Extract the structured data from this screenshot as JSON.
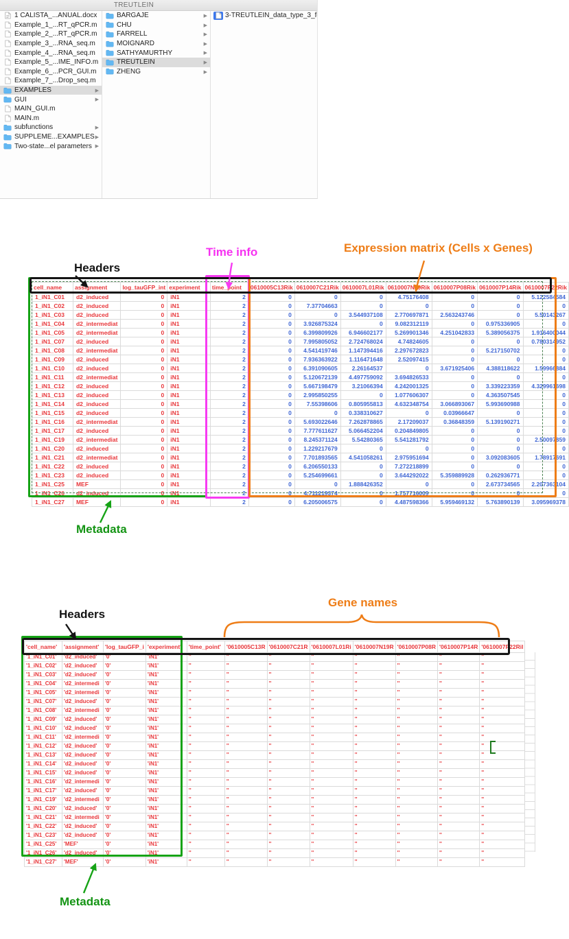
{
  "finder": {
    "title": "TREUTLEIN",
    "column1": [
      {
        "label": "1 CALISTA_...ANUAL.docx",
        "type": "docx"
      },
      {
        "label": "Example_1_...RT_qPCR.m",
        "type": "file"
      },
      {
        "label": "Example_2_...RT_qPCR.m",
        "type": "file"
      },
      {
        "label": "Example_3_...RNA_seq.m",
        "type": "file"
      },
      {
        "label": "Example_4_...RNA_seq.m",
        "type": "file"
      },
      {
        "label": "Example_5_...IME_INFO.m",
        "type": "file"
      },
      {
        "label": "Example_6_...PCR_GUI.m",
        "type": "file"
      },
      {
        "label": "Example_7_...Drop_seq.m",
        "type": "file"
      },
      {
        "label": "EXAMPLES",
        "type": "folder",
        "arrow": true,
        "selected": true
      },
      {
        "label": "GUI",
        "type": "folder",
        "arrow": true
      },
      {
        "label": "MAIN_GUI.m",
        "type": "file"
      },
      {
        "label": "MAIN.m",
        "type": "file"
      },
      {
        "label": "subfunctions",
        "type": "folder",
        "arrow": true
      },
      {
        "label": "SUPPLEME...EXAMPLES",
        "type": "folder",
        "arrow": true
      },
      {
        "label": "Two-state...el parameters",
        "type": "folder",
        "arrow": true
      }
    ],
    "column2": [
      {
        "label": "BARGAJE",
        "type": "folder",
        "arrow": true
      },
      {
        "label": "CHU",
        "type": "folder",
        "arrow": true
      },
      {
        "label": "FARRELL",
        "type": "folder",
        "arrow": true
      },
      {
        "label": "MOIGNARD",
        "type": "folder",
        "arrow": true
      },
      {
        "label": "SATHYAMURTHY",
        "type": "folder",
        "arrow": true
      },
      {
        "label": "TREUTLEIN",
        "type": "folder",
        "arrow": true,
        "selected": true
      },
      {
        "label": "ZHENG",
        "type": "folder",
        "arrow": true
      }
    ],
    "column3": [
      {
        "label": "3-TREUTLEIN_data_type_3_fo",
        "type": "file",
        "selected": true
      }
    ]
  },
  "figure1": {
    "annotations": {
      "headers": "Headers",
      "time": "Time info",
      "expression": "Expression matrix (Cells x Genes)",
      "metadata": "Metadata"
    },
    "table": {
      "headers": [
        "cell_name",
        "assignment",
        "log_tauGFP_int",
        "experiment",
        "time_point",
        "0610005C13Rik",
        "0610007C21Rik",
        "0610007L01Rik",
        "0610007N19Rik",
        "0610007P08Rik",
        "0610007P14Rik",
        "0610007P22Rik"
      ],
      "rows": [
        [
          "1_iN1_C01",
          "d2_induced",
          "0",
          "iN1",
          "2",
          "0",
          "0",
          "0",
          "4.75176408",
          "0",
          "0",
          "5.122584584"
        ],
        [
          "1_iN1_C02",
          "d2_induced",
          "0",
          "iN1",
          "2",
          "0",
          "7.37704663",
          "0",
          "0",
          "0",
          "0",
          "0"
        ],
        [
          "1_iN1_C03",
          "d2_induced",
          "0",
          "iN1",
          "2",
          "0",
          "0",
          "3.544937108",
          "2.770697871",
          "2.563243746",
          "0",
          "5.50143267"
        ],
        [
          "1_iN1_C04",
          "d2_intermediat",
          "0",
          "iN1",
          "2",
          "0",
          "3.926875324",
          "0",
          "9.082312119",
          "0",
          "0.975336905",
          "0"
        ],
        [
          "1_iN1_C05",
          "d2_intermediat",
          "0",
          "iN1",
          "2",
          "0",
          "6.399809926",
          "6.946602177",
          "5.269901346",
          "4.251042833",
          "5.389056375",
          "1.916400044"
        ],
        [
          "1_iN1_C07",
          "d2_induced",
          "0",
          "iN1",
          "2",
          "0",
          "7.995805052",
          "2.724768024",
          "4.74824605",
          "0",
          "0",
          "0.780314952"
        ],
        [
          "1_iN1_C08",
          "d2_intermediat",
          "0",
          "iN1",
          "2",
          "0",
          "4.541419746",
          "1.147394416",
          "2.297672823",
          "0",
          "5.217150702",
          "0"
        ],
        [
          "1_iN1_C09",
          "d2_induced",
          "0",
          "iN1",
          "2",
          "0",
          "7.936363922",
          "1.116471648",
          "2.52097415",
          "0",
          "0",
          "0"
        ],
        [
          "1_iN1_C10",
          "d2_induced",
          "0",
          "iN1",
          "2",
          "0",
          "6.391090605",
          "2.26164537",
          "0",
          "3.671925406",
          "4.388118622",
          "1.59966884"
        ],
        [
          "1_iN1_C11",
          "d2_intermediat",
          "0",
          "iN1",
          "2",
          "0",
          "5.120672139",
          "4.497759092",
          "3.694826533",
          "0",
          "0",
          "0"
        ],
        [
          "1_iN1_C12",
          "d2_induced",
          "0",
          "iN1",
          "2",
          "0",
          "5.667198479",
          "3.21066394",
          "4.242001325",
          "0",
          "3.339223359",
          "4.329961698"
        ],
        [
          "1_iN1_C13",
          "d2_induced",
          "0",
          "iN1",
          "2",
          "0",
          "2.995850255",
          "0",
          "1.077606307",
          "0",
          "4.363507545",
          "0"
        ],
        [
          "1_iN1_C14",
          "d2_induced",
          "0",
          "iN1",
          "2",
          "0",
          "7.55398606",
          "0.805955813",
          "4.632348754",
          "3.066893067",
          "5.993690988",
          "0"
        ],
        [
          "1_iN1_C15",
          "d2_induced",
          "0",
          "iN1",
          "2",
          "0",
          "0",
          "0.338310627",
          "0",
          "0.03966647",
          "0",
          "0"
        ],
        [
          "1_iN1_C16",
          "d2_intermediat",
          "0",
          "iN1",
          "2",
          "0",
          "5.693022646",
          "7.262878865",
          "2.17209037",
          "0.36848359",
          "5.139190271",
          "0"
        ],
        [
          "1_iN1_C17",
          "d2_induced",
          "0",
          "iN1",
          "2",
          "0",
          "7.777611627",
          "5.066452204",
          "0.204849805",
          "0",
          "0",
          "0"
        ],
        [
          "1_iN1_C19",
          "d2_intermediat",
          "0",
          "iN1",
          "2",
          "0",
          "8.245371124",
          "5.54280365",
          "5.541281792",
          "0",
          "0",
          "2.50097859"
        ],
        [
          "1_iN1_C20",
          "d2_induced",
          "0",
          "iN1",
          "2",
          "0",
          "1.229217679",
          "0",
          "0",
          "0",
          "0",
          "0"
        ],
        [
          "1_iN1_C21",
          "d2_intermediat",
          "0",
          "iN1",
          "2",
          "0",
          "7.701893565",
          "4.541058261",
          "2.975951694",
          "0",
          "3.092083605",
          "1.78917691"
        ],
        [
          "1_iN1_C22",
          "d2_induced",
          "0",
          "iN1",
          "2",
          "0",
          "6.206550133",
          "0",
          "7.272218899",
          "0",
          "0",
          "0"
        ],
        [
          "1_iN1_C23",
          "d2_induced",
          "0",
          "iN1",
          "2",
          "0",
          "5.254699661",
          "0",
          "3.644292022",
          "5.359889928",
          "0.262936771",
          "0"
        ],
        [
          "1_iN1_C25",
          "MEF",
          "0",
          "iN1",
          "2",
          "0",
          "0",
          "1.888426352",
          "0",
          "0",
          "2.673734565",
          "2.207363104"
        ],
        [
          "1_iN1_C26",
          "d2_induced",
          "0",
          "iN1",
          "2",
          "0",
          "4.711219374",
          "0",
          "1.757716009",
          "0",
          "0",
          "0"
        ],
        [
          "1_iN1_C27",
          "MEF",
          "0",
          "iN1",
          "2",
          "0",
          "6.205006575",
          "0",
          "4.487598366",
          "5.959469132",
          "5.763890139",
          "3.095969378"
        ]
      ]
    }
  },
  "figure2": {
    "annotations": {
      "headers": "Headers",
      "genes": "Gene names",
      "metadata": "Metadata"
    },
    "table": {
      "headers": [
        "'cell_name'",
        "'assignment'",
        "'log_tauGFP_i",
        "'experiment'",
        "'time_point'",
        "'0610005C13R",
        "'0610007C21R",
        "'0610007L01Ri",
        "'0610007N19R",
        "'0610007P08R",
        "'0610007P14R",
        "'0610007P22Ril"
      ],
      "rows": [
        [
          "'1_iN1_C01'",
          "'d2_induced'",
          "'0'",
          "'iN1'",
          "''",
          "''",
          "''",
          "''",
          "''",
          "''",
          "''",
          "''"
        ],
        [
          "'1_iN1_C02'",
          "'d2_induced'",
          "'0'",
          "'iN1'",
          "''",
          "''",
          "''",
          "''",
          "''",
          "''",
          "''",
          "''"
        ],
        [
          "'1_iN1_C03'",
          "'d2_induced'",
          "'0'",
          "'iN1'",
          "''",
          "''",
          "''",
          "''",
          "''",
          "''",
          "''",
          "''"
        ],
        [
          "'1_iN1_C04'",
          "'d2_intermedi",
          "'0'",
          "'iN1'",
          "''",
          "''",
          "''",
          "''",
          "''",
          "''",
          "''",
          "''"
        ],
        [
          "'1_iN1_C05'",
          "'d2_intermedi",
          "'0'",
          "'iN1'",
          "''",
          "''",
          "''",
          "''",
          "''",
          "''",
          "''",
          "''"
        ],
        [
          "'1_iN1_C07'",
          "'d2_induced'",
          "'0'",
          "'iN1'",
          "''",
          "''",
          "''",
          "''",
          "''",
          "''",
          "''",
          "''"
        ],
        [
          "'1_iN1_C08'",
          "'d2_intermedi",
          "'0'",
          "'iN1'",
          "''",
          "''",
          "''",
          "''",
          "''",
          "''",
          "''",
          "''"
        ],
        [
          "'1_iN1_C09'",
          "'d2_induced'",
          "'0'",
          "'iN1'",
          "''",
          "''",
          "''",
          "''",
          "''",
          "''",
          "''",
          "''"
        ],
        [
          "'1_iN1_C10'",
          "'d2_induced'",
          "'0'",
          "'iN1'",
          "''",
          "''",
          "''",
          "''",
          "''",
          "''",
          "''",
          "''"
        ],
        [
          "'1_iN1_C11'",
          "'d2_intermedi",
          "'0'",
          "'iN1'",
          "''",
          "''",
          "''",
          "''",
          "''",
          "''",
          "''",
          "''"
        ],
        [
          "'1_iN1_C12'",
          "'d2_induced'",
          "'0'",
          "'iN1'",
          "''",
          "''",
          "''",
          "''",
          "''",
          "''",
          "''",
          "''"
        ],
        [
          "'1_iN1_C13'",
          "'d2_induced'",
          "'0'",
          "'iN1'",
          "''",
          "''",
          "''",
          "''",
          "''",
          "''",
          "''",
          "''"
        ],
        [
          "'1_iN1_C14'",
          "'d2_induced'",
          "'0'",
          "'iN1'",
          "''",
          "''",
          "''",
          "''",
          "''",
          "''",
          "''",
          "''"
        ],
        [
          "'1_iN1_C15'",
          "'d2_induced'",
          "'0'",
          "'iN1'",
          "''",
          "''",
          "''",
          "''",
          "''",
          "''",
          "''",
          "''"
        ],
        [
          "'1_iN1_C16'",
          "'d2_intermedi",
          "'0'",
          "'iN1'",
          "''",
          "''",
          "''",
          "''",
          "''",
          "''",
          "''",
          "''"
        ],
        [
          "'1_iN1_C17'",
          "'d2_induced'",
          "'0'",
          "'iN1'",
          "''",
          "''",
          "''",
          "''",
          "''",
          "''",
          "''",
          "''"
        ],
        [
          "'1_iN1_C19'",
          "'d2_intermedi",
          "'0'",
          "'iN1'",
          "''",
          "''",
          "''",
          "''",
          "''",
          "''",
          "''",
          "''"
        ],
        [
          "'1_iN1_C20'",
          "'d2_induced'",
          "'0'",
          "'iN1'",
          "''",
          "''",
          "''",
          "''",
          "''",
          "''",
          "''",
          "''"
        ],
        [
          "'1_iN1_C21'",
          "'d2_intermedi",
          "'0'",
          "'iN1'",
          "''",
          "''",
          "''",
          "''",
          "''",
          "''",
          "''",
          "''"
        ],
        [
          "'1_iN1_C22'",
          "'d2_induced'",
          "'0'",
          "'iN1'",
          "''",
          "''",
          "''",
          "''",
          "''",
          "''",
          "''",
          "''"
        ],
        [
          "'1_iN1_C23'",
          "'d2_induced'",
          "'0'",
          "'iN1'",
          "''",
          "''",
          "''",
          "''",
          "''",
          "''",
          "''",
          "''"
        ],
        [
          "'1_iN1_C25'",
          "'MEF'",
          "'0'",
          "'iN1'",
          "''",
          "''",
          "''",
          "''",
          "''",
          "''",
          "''",
          "''"
        ],
        [
          "'1_iN1_C26'",
          "'d2_induced'",
          "'0'",
          "'iN1'",
          "''",
          "''",
          "''",
          "''",
          "''",
          "''",
          "''",
          "''"
        ],
        [
          "'1_iN1_C27'",
          "'MEF'",
          "'0'",
          "'iN1'",
          "''",
          "''",
          "''",
          "''",
          "''",
          "''",
          "''",
          "''"
        ]
      ]
    }
  },
  "colors": {
    "annotation_green": "#16a316",
    "annotation_magenta": "#f73bf2",
    "annotation_orange": "#ee7d17",
    "annotation_black": "#141414",
    "metadata_text_red": "#e8363a",
    "value_text_blue": "#3f66d4",
    "selection_blue": "#3b78ef",
    "folder_blue": "#63b8f2"
  }
}
